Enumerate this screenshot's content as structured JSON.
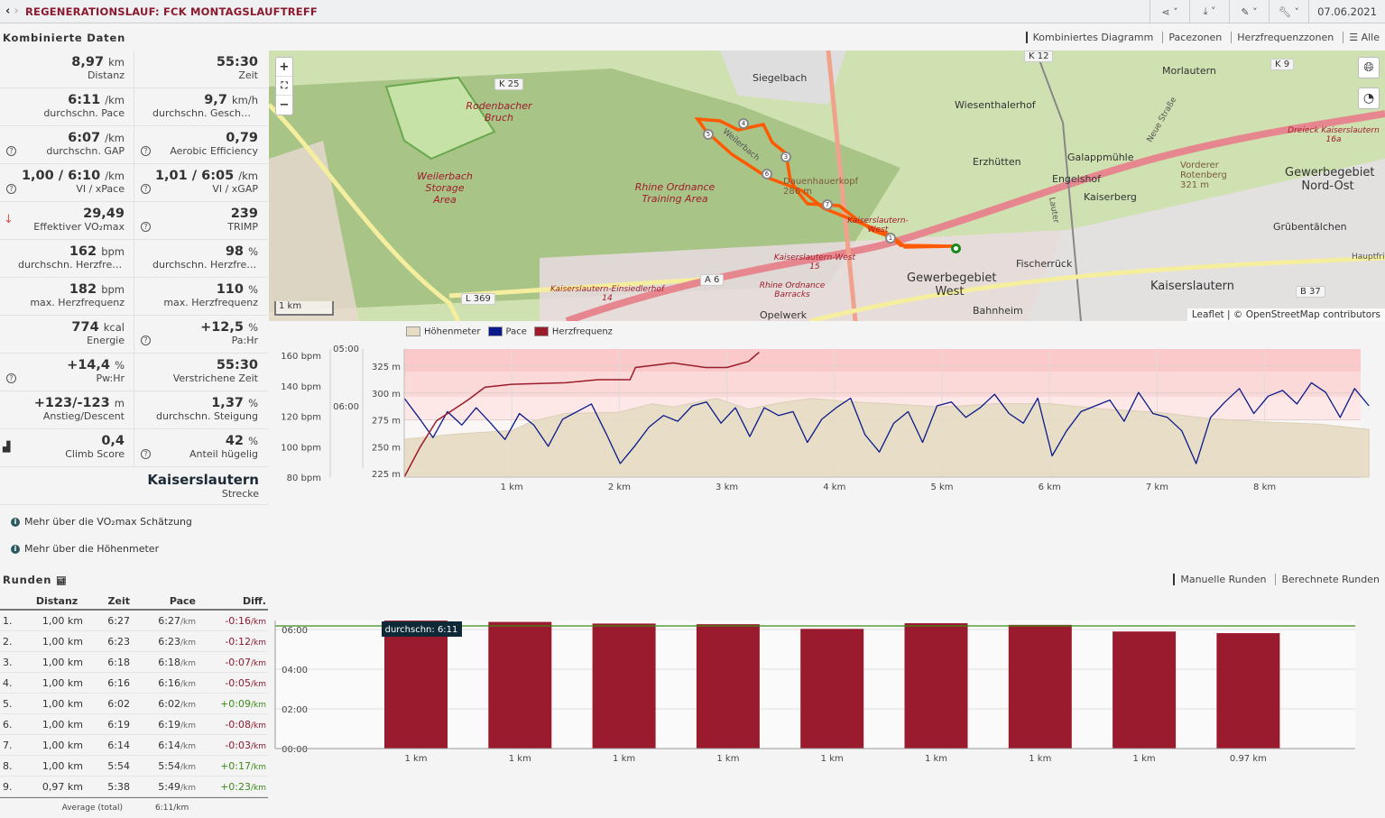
{
  "header": {
    "title": "REGENERATIONSLAUF: FCK MONTAGSLAUFTREFF",
    "date": "07.06.2021",
    "tools": [
      "share-icon",
      "download-icon",
      "magic-icon",
      "wrench-icon"
    ]
  },
  "combined": {
    "title": "Kombinierte Daten",
    "tabs": [
      "Kombiniertes Diagramm",
      "Pacezonen",
      "Herzfrequenzzonen",
      "Alle"
    ]
  },
  "stats": [
    [
      {
        "v": "8,97",
        "u": "km",
        "l": "Distanz"
      },
      {
        "v": "55:30",
        "u": "",
        "l": "Zeit"
      }
    ],
    [
      {
        "v": "6:11",
        "u": "/km",
        "l": "durchschn. Pace"
      },
      {
        "v": "9,7",
        "u": "km/h",
        "l": "durchschn. Geschwindigkeit"
      }
    ],
    [
      {
        "v": "6:07",
        "u": "/km",
        "l": "durchschn. GAP",
        "q": true
      },
      {
        "v": "0,79",
        "u": "",
        "l": "Aerobic Efficiency",
        "q": true
      }
    ],
    [
      {
        "v": "1,00 / 6:10",
        "u": "/km",
        "l": "VI / xPace",
        "q": true
      },
      {
        "v": "1,01 / 6:05",
        "u": "/km",
        "l": "VI / xGAP",
        "q": true
      }
    ],
    [
      {
        "v": "29,49",
        "u": "",
        "l": "Effektiver VO₂max",
        "arrow": true
      },
      {
        "v": "239",
        "u": "",
        "l": "TRIMP",
        "q": true
      }
    ],
    [
      {
        "v": "162",
        "u": "bpm",
        "l": "durchschn. Herzfrequenz"
      },
      {
        "v": "98",
        "u": "%",
        "l": "durchschn. Herzfrequenz"
      }
    ],
    [
      {
        "v": "182",
        "u": "bpm",
        "l": "max. Herzfrequenz"
      },
      {
        "v": "110",
        "u": "%",
        "l": "max. Herzfrequenz"
      }
    ],
    [
      {
        "v": "774",
        "u": "kcal",
        "l": "Energie"
      },
      {
        "v": "+12,5",
        "u": "%",
        "l": "Pa:Hr",
        "q": true
      }
    ],
    [
      {
        "v": "+14,4",
        "u": "%",
        "l": "Pw:Hr",
        "q": true
      },
      {
        "v": "55:30",
        "u": "",
        "l": "Verstrichene Zeit"
      }
    ],
    [
      {
        "v": "+123/-123",
        "u": "m",
        "l": "Anstieg/Descent"
      },
      {
        "v": "1,37",
        "u": "%",
        "l": "durchschn. Steigung"
      }
    ],
    [
      {
        "v": "0,4",
        "u": "",
        "l": "Climb Score",
        "climb": true
      },
      {
        "v": "42",
        "u": "%",
        "l": "Anteil hügelig",
        "q": true
      }
    ]
  ],
  "route": {
    "name": "Kaiserslautern",
    "label": "Strecke"
  },
  "info": [
    "Mehr über die VO₂max Schätzung",
    "Mehr über die Höhenmeter"
  ],
  "map": {
    "labels": [
      "Siegelbach",
      "Wiesenthalerhof",
      "Morlautern",
      "Erzhütten",
      "Galappmühle",
      "Engelshof",
      "Kaiserberg",
      "Fischerrück",
      "Kaiserslautern",
      "Grübentälchen",
      "Bahnheim",
      "Opelwerk",
      "Gewerbegebiet West",
      "Gewerbegebiet Nord-Ost",
      "Dauenhauerkopf 286 m",
      "Vorderer Rotenberg 321 m",
      "Weilerbach",
      "Neue Straße",
      "Lauter",
      "Hauptfried"
    ],
    "red_labels": [
      "Rodenbacher Bruch",
      "Weilerbach Storage Area",
      "Rhine Ordnance Training Area",
      "Kaiserslautern-West 15",
      "Rhine Ordnance Barracks",
      "Kaiserslautern-Einsiedlerhof 14",
      "Dreieck Kaiserslautern 16a",
      "Kaiserslautern-West"
    ],
    "shields": [
      "K 25",
      "K 12",
      "K 9",
      "A 6",
      "L 369",
      "B 37"
    ],
    "scale": "1 km",
    "attribution": "Leaflet | © OpenStreetMap contributors",
    "markers": [
      "1",
      "3",
      "4",
      "5",
      "6",
      "7"
    ],
    "zoom_in": "+",
    "zoom_out": "−",
    "fullscreen": "⛶"
  },
  "chart_data": [
    {
      "type": "line",
      "title": "Kombiniertes Diagramm",
      "legend": [
        "Höhenmeter",
        "Pace",
        "Herzfrequenz"
      ],
      "colors": {
        "elevation": "#e6dcc4",
        "pace": "#0a1a8a",
        "hr": "#9b1b2a"
      },
      "x_ticks": [
        "1 km",
        "2 km",
        "3 km",
        "4 km",
        "5 km",
        "6 km",
        "7 km",
        "8 km"
      ],
      "hr_ticks": [
        "80 bpm",
        "100 bpm",
        "120 bpm",
        "140 bpm",
        "160 bpm"
      ],
      "pace_ticks": [
        "05:00",
        "06:00"
      ],
      "elev_ticks": [
        "225 m",
        "250 m",
        "275 m",
        "300 m",
        "325 m"
      ],
      "xlim": [
        0,
        8.97
      ],
      "hr_range": [
        80,
        162
      ],
      "elev_range": [
        218,
        338
      ],
      "elevation": [
        [
          0,
          257
        ],
        [
          0.5,
          262
        ],
        [
          1,
          265
        ],
        [
          1.2,
          274
        ],
        [
          1.5,
          281
        ],
        [
          2,
          282
        ],
        [
          2.3,
          290
        ],
        [
          2.5,
          287
        ],
        [
          2.9,
          295
        ],
        [
          3.2,
          285
        ],
        [
          3.5,
          291
        ],
        [
          3.8,
          295
        ],
        [
          4.1,
          292
        ],
        [
          4.5,
          290
        ],
        [
          5,
          287
        ],
        [
          5.5,
          290
        ],
        [
          6,
          290
        ],
        [
          6.5,
          285
        ],
        [
          7,
          282
        ],
        [
          7.5,
          276
        ],
        [
          8,
          273
        ],
        [
          8.5,
          271
        ],
        [
          8.97,
          266
        ]
      ],
      "heart_rate": [
        [
          0,
          80
        ],
        [
          0.15,
          100
        ],
        [
          0.3,
          117
        ],
        [
          0.45,
          124
        ],
        [
          0.6,
          131
        ],
        [
          0.75,
          139
        ],
        [
          1,
          141
        ],
        [
          1.5,
          142
        ],
        [
          1.8,
          144
        ],
        [
          2.1,
          144
        ],
        [
          2.15,
          152
        ],
        [
          2.5,
          155
        ],
        [
          2.8,
          152
        ],
        [
          3,
          152
        ],
        [
          3.2,
          156
        ],
        [
          3.3,
          162
        ]
      ],
      "pace_s": [
        352,
        372,
        393,
        366,
        380,
        362,
        378,
        395,
        368,
        380,
        402,
        374,
        366,
        358,
        388,
        420,
        402,
        382,
        370,
        376,
        360,
        356,
        378,
        362,
        392,
        362,
        370,
        366,
        398,
        374,
        362,
        352,
        390,
        408,
        378,
        366,
        398,
        360,
        356,
        372,
        362,
        348,
        368,
        378,
        352,
        412,
        386,
        366,
        360,
        354,
        376,
        346,
        368,
        372,
        386,
        420,
        372,
        356,
        342,
        368,
        350,
        344,
        358,
        336,
        346,
        372,
        342,
        360
      ]
    },
    {
      "type": "bar",
      "title": "Runden",
      "categories": [
        "1 km",
        "1 km",
        "1 km",
        "1 km",
        "1 km",
        "1 km",
        "1 km",
        "1 km",
        "0.97 km"
      ],
      "values_s": [
        387,
        383,
        378,
        376,
        362,
        379,
        374,
        354,
        349
      ],
      "y_ticks": [
        "00:00",
        "02:00",
        "04:00",
        "06:00"
      ],
      "ylim_s": [
        0,
        390
      ],
      "average_s": 371,
      "average_label": "durchschn: 6:11",
      "color": "#9b1b2e",
      "avg_color": "#3c8a17"
    }
  ],
  "laps": {
    "title": "Runden",
    "tabs": [
      "Manuelle Runden",
      "Berechnete Runden"
    ],
    "headers": [
      "",
      "Distanz",
      "Zeit",
      "Pace",
      "Diff."
    ],
    "rows": [
      [
        "1.",
        "1,00 km",
        "6:27",
        "6:27",
        "-0:16"
      ],
      [
        "2.",
        "1,00 km",
        "6:23",
        "6:23",
        "-0:12"
      ],
      [
        "3.",
        "1,00 km",
        "6:18",
        "6:18",
        "-0:07"
      ],
      [
        "4.",
        "1,00 km",
        "6:16",
        "6:16",
        "-0:05"
      ],
      [
        "5.",
        "1,00 km",
        "6:02",
        "6:02",
        "+0:09"
      ],
      [
        "6.",
        "1,00 km",
        "6:19",
        "6:19",
        "-0:08"
      ],
      [
        "7.",
        "1,00 km",
        "6:14",
        "6:14",
        "-0:03"
      ],
      [
        "8.",
        "1,00 km",
        "5:54",
        "5:54",
        "+0:17"
      ],
      [
        "9.",
        "0,97 km",
        "5:38",
        "5:49",
        "+0:23"
      ]
    ],
    "unit": "/km",
    "avg_label": "Average (total)",
    "avg_pace": "6:11"
  }
}
